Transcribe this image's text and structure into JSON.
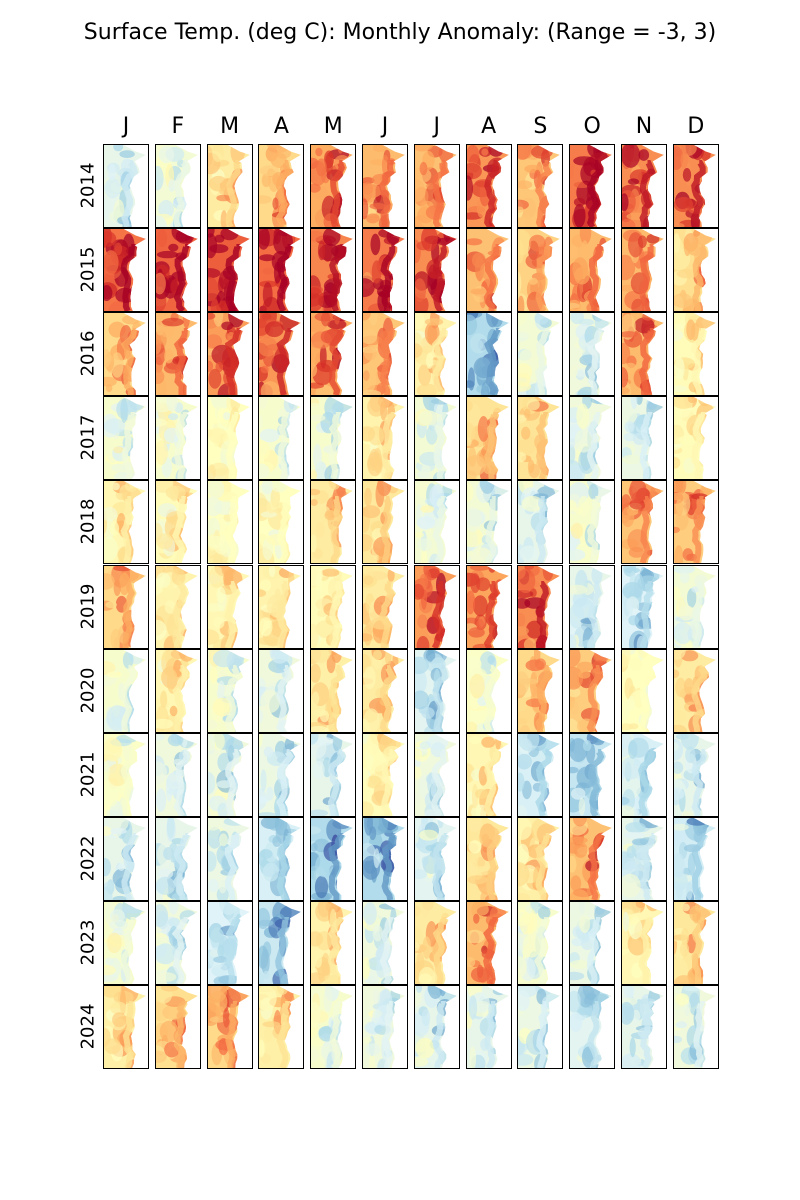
{
  "chart_data": {
    "type": "heatmap",
    "title": "Surface Temp. (deg C): Monthly Anomaly: (Range = -3, 3)",
    "range": [
      -3,
      3
    ],
    "colormap": "RdYlBu_r",
    "months": [
      "J",
      "F",
      "M",
      "A",
      "M",
      "J",
      "J",
      "A",
      "S",
      "O",
      "N",
      "D"
    ],
    "years": [
      "2014",
      "2015",
      "2016",
      "2017",
      "2018",
      "2019",
      "2020",
      "2021",
      "2022",
      "2023",
      "2024"
    ],
    "mean_anomaly": [
      [
        -0.6,
        -0.3,
        0.5,
        0.9,
        1.6,
        1.4,
        1.3,
        1.9,
        1.2,
        2.2,
        2.0,
        2.0
      ],
      [
        2.3,
        2.5,
        2.6,
        2.4,
        2.1,
        2.2,
        2.0,
        1.3,
        1.0,
        1.4,
        1.4,
        0.8
      ],
      [
        0.9,
        1.4,
        1.8,
        1.9,
        1.6,
        1.2,
        0.3,
        -1.5,
        -0.3,
        -0.4,
        1.4,
        0.1
      ],
      [
        -0.2,
        -0.2,
        0.0,
        -0.2,
        -0.2,
        0.3,
        -0.3,
        0.7,
        0.7,
        -0.4,
        -0.5,
        0.1
      ],
      [
        0.2,
        0.1,
        0.0,
        0.0,
        0.5,
        0.6,
        -0.3,
        -0.3,
        -0.6,
        -0.2,
        1.2,
        1.1
      ],
      [
        0.9,
        0.3,
        0.2,
        0.3,
        0.1,
        0.5,
        1.8,
        1.7,
        2.0,
        -0.6,
        -0.8,
        -0.3
      ],
      [
        -0.2,
        0.2,
        -0.2,
        -0.4,
        0.4,
        0.5,
        -0.7,
        -0.1,
        0.9,
        1.1,
        0.0,
        0.5
      ],
      [
        -0.1,
        -0.4,
        -0.4,
        -0.5,
        -0.6,
        0.1,
        -0.4,
        0.2,
        -0.9,
        -1.2,
        -0.9,
        -0.6
      ],
      [
        -0.6,
        -0.6,
        -0.5,
        -0.9,
        -1.5,
        -1.5,
        -0.7,
        0.6,
        0.4,
        1.3,
        -0.6,
        -1.0
      ],
      [
        -0.2,
        -0.4,
        -0.8,
        -1.1,
        0.3,
        -0.4,
        0.5,
        1.4,
        -0.2,
        -0.5,
        0.2,
        0.6
      ],
      [
        0.4,
        0.8,
        0.9,
        0.4,
        -0.2,
        -0.4,
        -0.6,
        -0.6,
        -0.5,
        -0.7,
        -0.6,
        -0.4
      ]
    ]
  }
}
